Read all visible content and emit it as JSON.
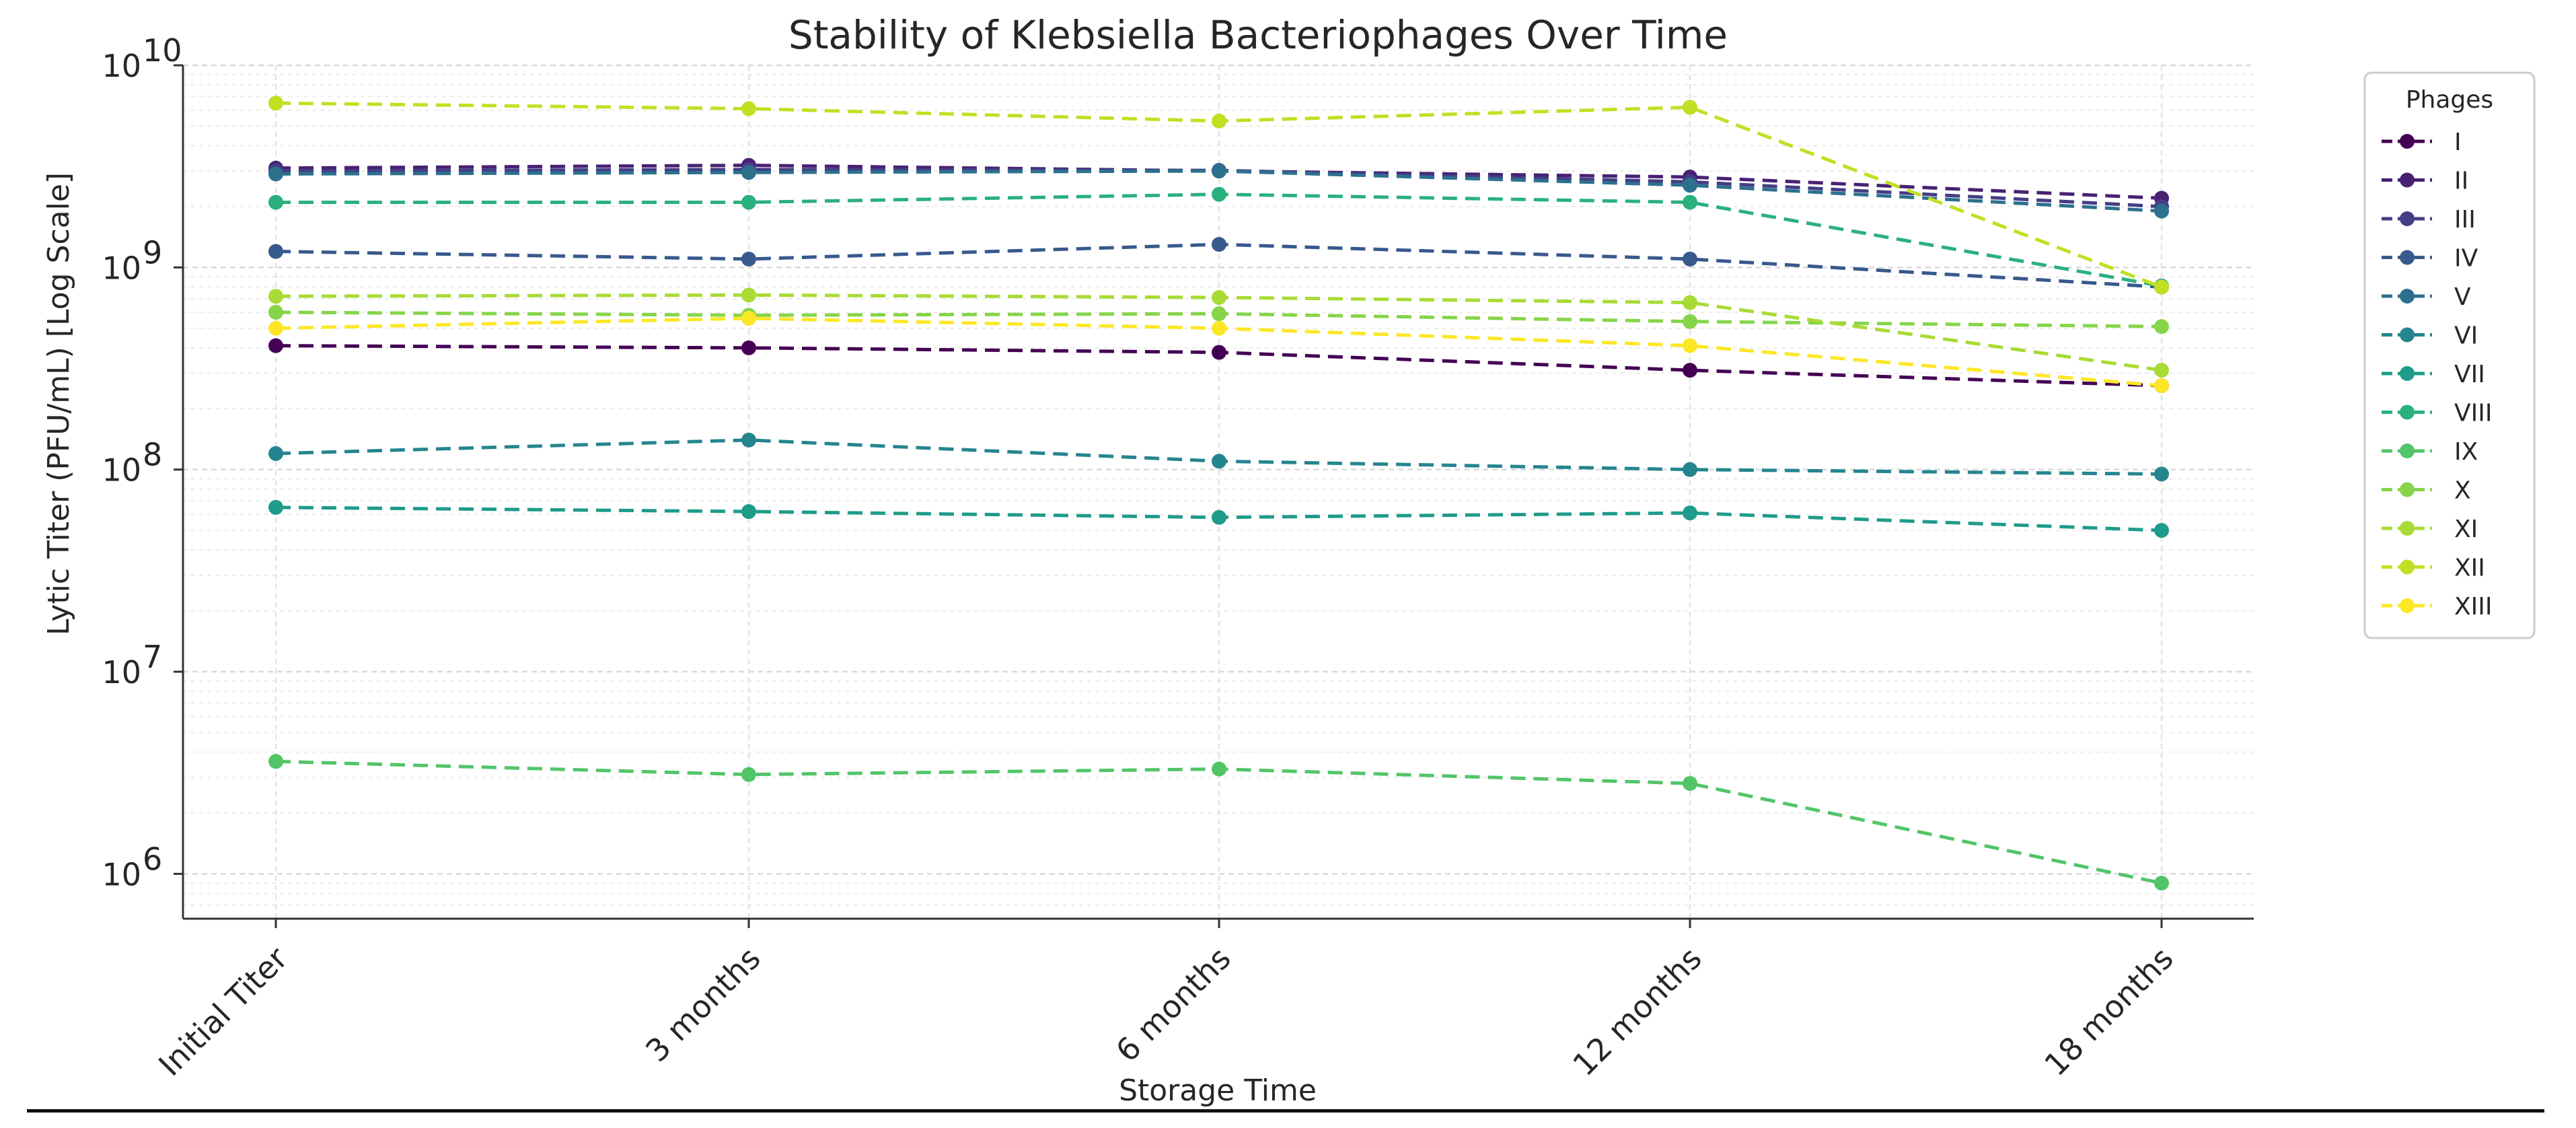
{
  "chart_data": {
    "type": "line",
    "title": "Stability of Klebsiella Bacteriophages Over Time",
    "xlabel": "Storage Time",
    "ylabel": "Lytic Titer (PFU/mL) [Log Scale]",
    "yscale": "log",
    "ylim": [
      600000,
      10000000000
    ],
    "y_ticks": [
      {
        "base": "10",
        "exp": "6",
        "value": 1000000
      },
      {
        "base": "10",
        "exp": "7",
        "value": 10000000
      },
      {
        "base": "10",
        "exp": "8",
        "value": 100000000
      },
      {
        "base": "10",
        "exp": "9",
        "value": 1000000000
      },
      {
        "base": "10",
        "exp": "10",
        "value": 10000000000
      }
    ],
    "grid": true,
    "categories": [
      "Initial Titer",
      "3 months",
      "6 months",
      "12 months",
      "18 months"
    ],
    "legend": {
      "title": "Phages",
      "placement": "upper right outside"
    },
    "series": [
      {
        "name": "I",
        "color": "#440154",
        "values": [
          410000000,
          400000000,
          380000000,
          310000000,
          260000000
        ]
      },
      {
        "name": "II",
        "color": "#482173",
        "values": [
          3100000000,
          3200000000,
          3000000000,
          2800000000,
          2200000000
        ]
      },
      {
        "name": "III",
        "color": "#433e85",
        "values": [
          3000000000,
          3050000000,
          3020000000,
          2650000000,
          2000000000
        ]
      },
      {
        "name": "IV",
        "color": "#38598c",
        "values": [
          1200000000,
          1100000000,
          1300000000,
          1100000000,
          800000000
        ]
      },
      {
        "name": "V",
        "color": "#2d708e",
        "values": [
          2900000000,
          2950000000,
          3000000000,
          2550000000,
          1900000000
        ]
      },
      {
        "name": "VI",
        "color": "#25858e",
        "values": [
          120000000,
          140000000,
          110000000,
          100000000,
          95000000
        ]
      },
      {
        "name": "VII",
        "color": "#1e9b8a",
        "values": [
          65000000,
          62000000,
          58000000,
          61000000,
          50000000
        ]
      },
      {
        "name": "VIII",
        "color": "#2ab07f",
        "values": [
          2100000000,
          2100000000,
          2300000000,
          2100000000,
          810000000
        ]
      },
      {
        "name": "IX",
        "color": "#52c569",
        "values": [
          3600000,
          3100000,
          3300000,
          2800000,
          900000
        ]
      },
      {
        "name": "X",
        "color": "#86d549",
        "values": [
          600000000,
          580000000,
          590000000,
          540000000,
          510000000
        ]
      },
      {
        "name": "XI",
        "color": "#a8db34",
        "values": [
          720000000,
          730000000,
          710000000,
          670000000,
          310000000
        ]
      },
      {
        "name": "XII",
        "color": "#c2df23",
        "values": [
          6500000000,
          6100000000,
          5300000000,
          6200000000,
          800000000
        ]
      },
      {
        "name": "XIII",
        "color": "#fde725",
        "values": [
          500000000,
          560000000,
          500000000,
          410000000,
          260000000
        ]
      }
    ]
  }
}
